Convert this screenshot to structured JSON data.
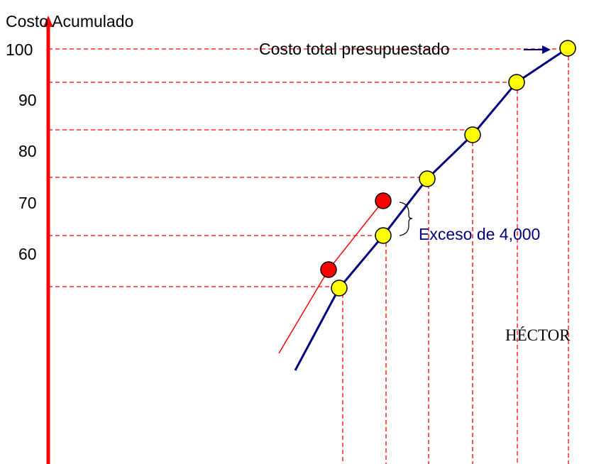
{
  "title": "Costo Acumulado",
  "axis_labels": [
    "100",
    "90",
    "80",
    "70",
    "60"
  ],
  "annotations": {
    "budget": "Costo total presupuestado",
    "excess": "Exceso de 4,000",
    "author": "HÉCTOR"
  }
}
